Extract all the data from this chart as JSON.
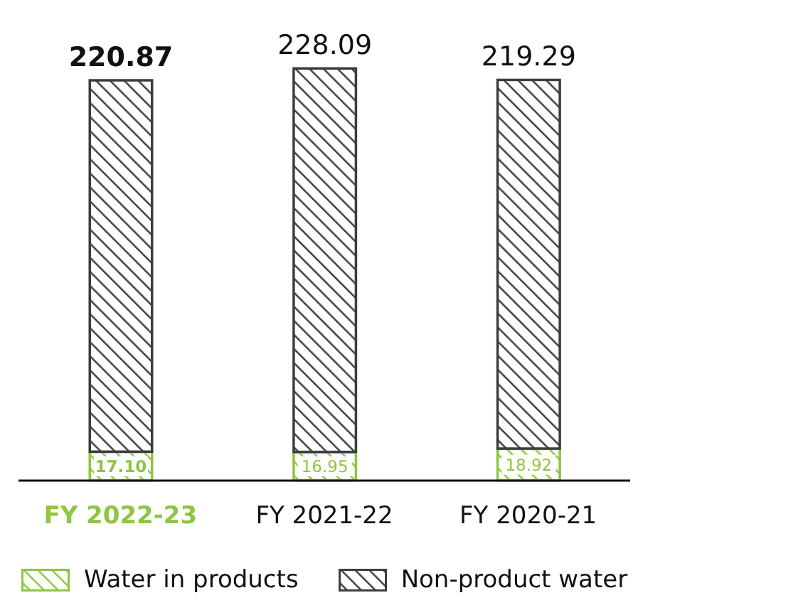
{
  "chart_data": {
    "type": "bar",
    "stacked": true,
    "categories": [
      "FY 2022-23",
      "FY 2021-22",
      "FY 2020-21"
    ],
    "series": [
      {
        "name": "Water in products",
        "color": "#8dc63f",
        "values": [
          17.1,
          16.95,
          18.92
        ],
        "value_labels": [
          "17.10",
          "16.95",
          "18.92"
        ]
      },
      {
        "name": "Non-product water",
        "color": "#3d3d3d",
        "values": [
          220.87,
          228.09,
          219.29
        ],
        "value_labels": [
          "220.87",
          "228.09",
          "219.29"
        ]
      }
    ],
    "legend": "bottom"
  }
}
